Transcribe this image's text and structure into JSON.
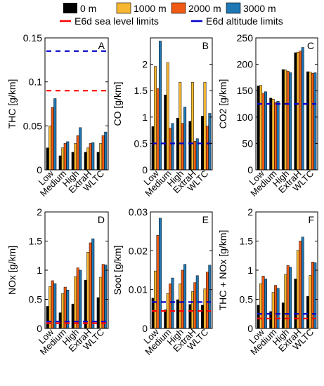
{
  "legend": {
    "series": [
      {
        "name": "0 m",
        "color": "#000000"
      },
      {
        "name": "1000 m",
        "color": "#F7B731"
      },
      {
        "name": "2000 m",
        "color": "#F15A14"
      },
      {
        "name": "3000 m",
        "color": "#1F77B4"
      }
    ],
    "limits": [
      {
        "name": "E6d sea level limits",
        "color": "#FF0000"
      },
      {
        "name": "E6d altitude limits",
        "color": "#0000CC"
      }
    ]
  },
  "chart_data": [
    {
      "type": "bar",
      "panel_label": "A",
      "ylabel": "THC [g/km]",
      "categories": [
        "Low",
        "Medium",
        "High",
        "ExtraH",
        "WLTC"
      ],
      "ylim": [
        0,
        0.15
      ],
      "yticks": [
        "0",
        "0.05",
        "0.1",
        "0.15"
      ],
      "ytick_values": [
        0,
        0.05,
        0.1,
        0.15
      ],
      "series": [
        {
          "name": "0 m",
          "values": [
            0.025,
            0.016,
            0.02,
            0.02,
            0.02
          ]
        },
        {
          "name": "1000 m",
          "values": [
            0.05,
            0.025,
            0.03,
            0.025,
            0.03
          ]
        },
        {
          "name": "2000 m",
          "values": [
            0.071,
            0.03,
            0.039,
            0.03,
            0.039
          ]
        },
        {
          "name": "3000 m",
          "values": [
            0.081,
            0.032,
            0.048,
            0.031,
            0.043
          ]
        }
      ],
      "sea_level_limit": 0.09,
      "altitude_limit": 0.135
    },
    {
      "type": "bar",
      "panel_label": "B",
      "ylabel": "CO [g/km]",
      "categories": [
        "Low",
        "Medium",
        "High",
        "ExtraH",
        "WLTC"
      ],
      "ylim": [
        0,
        2.5
      ],
      "yticks": [
        "0",
        "0.5",
        "1",
        "1.5",
        "2"
      ],
      "ytick_values": [
        0,
        0.5,
        1,
        1.5,
        2
      ],
      "series": [
        {
          "name": "0 m",
          "values": [
            0.82,
            1.42,
            0.98,
            0.92,
            1.02
          ]
        },
        {
          "name": "1000 m",
          "values": [
            1.96,
            2.03,
            1.66,
            1.66,
            1.66
          ]
        },
        {
          "name": "2000 m",
          "values": [
            1.54,
            0.79,
            0.88,
            0.54,
            0.83
          ]
        },
        {
          "name": "3000 m",
          "values": [
            2.44,
            0.88,
            1.19,
            0.59,
            1.07
          ]
        }
      ],
      "sea_level_limit": 0.5,
      "altitude_limit": 0.5
    },
    {
      "type": "bar",
      "panel_label": "C",
      "ylabel": "CO2 [g/km]",
      "categories": [
        "Low",
        "Medium",
        "High",
        "ExtraH",
        "WLTC"
      ],
      "ylim": [
        0,
        250
      ],
      "yticks": [
        "0",
        "50",
        "100",
        "150",
        "200",
        "250"
      ],
      "ytick_values": [
        0,
        50,
        100,
        150,
        200,
        250
      ],
      "series": [
        {
          "name": "0 m",
          "values": [
            159,
            136,
            190,
            222,
            186
          ]
        },
        {
          "name": "1000 m",
          "values": [
            160,
            134,
            189,
            223,
            185
          ]
        },
        {
          "name": "2000 m",
          "values": [
            145,
            128,
            187,
            225,
            183
          ]
        },
        {
          "name": "3000 m",
          "values": [
            148,
            130,
            184,
            232,
            184
          ]
        }
      ],
      "sea_level_limit": 125,
      "altitude_limit": 125
    },
    {
      "type": "bar",
      "panel_label": "D",
      "ylabel": "NOx [g/km]",
      "categories": [
        "Low",
        "Medium",
        "High",
        "ExtraH",
        "WLTC"
      ],
      "ylim": [
        0,
        2
      ],
      "yticks": [
        "0",
        "0.5",
        "1",
        "1.5",
        "2"
      ],
      "ytick_values": [
        0,
        0.5,
        1,
        1.5,
        2
      ],
      "series": [
        {
          "name": "0 m",
          "values": [
            0.38,
            0.27,
            0.42,
            0.83,
            0.53
          ]
        },
        {
          "name": "1000 m",
          "values": [
            0.72,
            0.6,
            0.89,
            1.31,
            0.88
          ]
        },
        {
          "name": "2000 m",
          "values": [
            0.82,
            0.71,
            1.04,
            1.47,
            1.1
          ]
        },
        {
          "name": "3000 m",
          "values": [
            0.77,
            0.66,
            1.0,
            1.54,
            1.09
          ]
        }
      ],
      "sea_level_limit": 0.09,
      "altitude_limit": 0.12
    },
    {
      "type": "bar",
      "panel_label": "E",
      "ylabel": "Soot [g/km]",
      "categories": [
        "Low",
        "Medium",
        "High",
        "ExtraH",
        "WLTC"
      ],
      "ylim": [
        0,
        0.03
      ],
      "yticks": [
        "0",
        "0.01",
        "0.02",
        "0.03"
      ],
      "ytick_values": [
        0,
        0.01,
        0.02,
        0.03
      ],
      "series": [
        {
          "name": "0 m",
          "values": [
            0.0078,
            0.0048,
            0.0074,
            0.0062,
            0.006
          ]
        },
        {
          "name": "1000 m",
          "values": [
            0.0148,
            0.009,
            0.0115,
            0.0095,
            0.0102
          ]
        },
        {
          "name": "2000 m",
          "values": [
            0.024,
            0.0115,
            0.015,
            0.0118,
            0.0145
          ]
        },
        {
          "name": "3000 m",
          "values": [
            0.0284,
            0.013,
            0.0165,
            0.0136,
            0.0163
          ]
        }
      ],
      "sea_level_limit": 0.0045,
      "altitude_limit": 0.0068
    },
    {
      "type": "bar",
      "panel_label": "F",
      "ylabel": "THC + NOx [g/km]",
      "categories": [
        "Low",
        "Medium",
        "High",
        "ExtraH",
        "WLTC"
      ],
      "ylim": [
        0,
        2
      ],
      "yticks": [
        "0",
        "0.5",
        "1",
        "1.5",
        "2"
      ],
      "ytick_values": [
        0,
        0.5,
        1,
        1.5,
        2
      ],
      "series": [
        {
          "name": "0 m",
          "values": [
            0.4,
            0.29,
            0.44,
            0.85,
            0.55
          ]
        },
        {
          "name": "1000 m",
          "values": [
            0.77,
            0.62,
            0.93,
            1.34,
            0.91
          ]
        },
        {
          "name": "2000 m",
          "values": [
            0.9,
            0.74,
            1.08,
            1.5,
            1.14
          ]
        },
        {
          "name": "3000 m",
          "values": [
            0.85,
            0.69,
            1.05,
            1.57,
            1.13
          ]
        }
      ],
      "sea_level_limit": 0.17,
      "altitude_limit": 0.25
    }
  ]
}
